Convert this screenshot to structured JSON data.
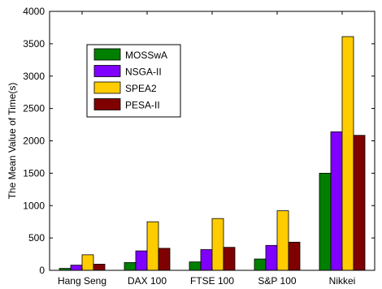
{
  "chart_data": {
    "type": "bar",
    "title": "",
    "xlabel": "",
    "ylabel": "The Mean Value of Time(s)",
    "ylim": [
      0,
      4000
    ],
    "yticks": [
      0,
      500,
      1000,
      1500,
      2000,
      2500,
      3000,
      3500,
      4000
    ],
    "grid": false,
    "legend_position": "top-left",
    "categories": [
      "Hang Seng",
      "DAX 100",
      "FTSE 100",
      "S&P 100",
      "Nikkei"
    ],
    "series": [
      {
        "name": "MOSSwA",
        "color": "#007f00",
        "values": [
          30,
          120,
          130,
          175,
          1500
        ]
      },
      {
        "name": "NSGA-II",
        "color": "#7f00ff",
        "values": [
          80,
          300,
          320,
          385,
          2140
        ]
      },
      {
        "name": "SPEA2",
        "color": "#ffcc00",
        "values": [
          240,
          750,
          800,
          920,
          3610
        ]
      },
      {
        "name": "PESA-II",
        "color": "#7f0000",
        "values": [
          95,
          340,
          355,
          435,
          2085
        ]
      }
    ]
  }
}
